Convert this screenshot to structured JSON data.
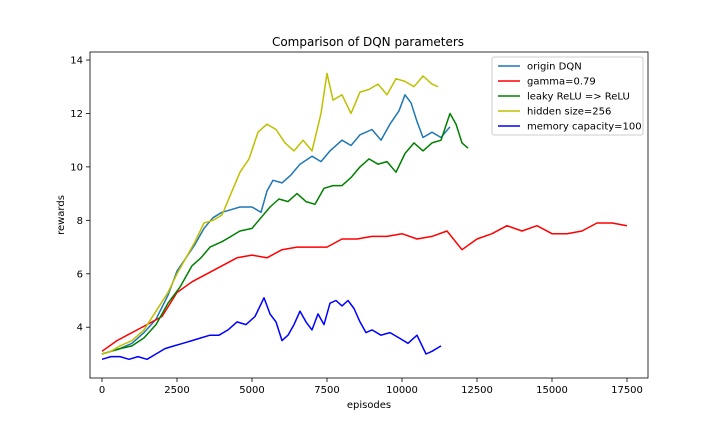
{
  "chart_data": {
    "type": "line",
    "title": "Comparison of DQN parameters",
    "xlabel": "episodes",
    "ylabel": "rewards",
    "xlim": [
      -400,
      18200
    ],
    "ylim": [
      2.1,
      14.3
    ],
    "xticks": [
      0,
      2500,
      5000,
      7500,
      10000,
      12500,
      15000,
      17500
    ],
    "yticks": [
      4,
      6,
      8,
      10,
      12,
      14
    ],
    "grid": false,
    "legend_position": "top-right",
    "series": [
      {
        "name": "origin DQN",
        "color": "#1f77b4",
        "x": [
          0,
          300,
          600,
          1000,
          1400,
          1800,
          2200,
          2500,
          2800,
          3100,
          3400,
          3700,
          4000,
          4300,
          4600,
          5000,
          5300,
          5500,
          5700,
          6000,
          6300,
          6600,
          7000,
          7300,
          7600,
          8000,
          8300,
          8600,
          9000,
          9300,
          9600,
          9900,
          10100,
          10300,
          10500,
          10700,
          11000,
          11300,
          11600
        ],
        "y": [
          3.0,
          3.1,
          3.2,
          3.4,
          3.8,
          4.3,
          5.2,
          6.1,
          6.6,
          7.1,
          7.7,
          8.1,
          8.3,
          8.4,
          8.5,
          8.5,
          8.3,
          9.1,
          9.5,
          9.4,
          9.7,
          10.1,
          10.4,
          10.2,
          10.6,
          11.0,
          10.8,
          11.2,
          11.4,
          11.0,
          11.6,
          12.1,
          12.7,
          12.4,
          11.7,
          11.1,
          11.3,
          11.1,
          11.5
        ]
      },
      {
        "name": "gamma=0.79",
        "color": "#ff0000",
        "x": [
          0,
          500,
          1000,
          1500,
          2000,
          2500,
          3000,
          3500,
          4000,
          4500,
          5000,
          5500,
          6000,
          6500,
          7000,
          7500,
          8000,
          8500,
          9000,
          9500,
          10000,
          10500,
          11000,
          11500,
          12000,
          12500,
          13000,
          13500,
          14000,
          14500,
          15000,
          15500,
          16000,
          16500,
          17000,
          17500
        ],
        "y": [
          3.1,
          3.5,
          3.8,
          4.1,
          4.4,
          5.3,
          5.7,
          6.0,
          6.3,
          6.6,
          6.7,
          6.6,
          6.9,
          7.0,
          7.0,
          7.0,
          7.3,
          7.3,
          7.4,
          7.4,
          7.5,
          7.3,
          7.4,
          7.6,
          6.9,
          7.3,
          7.5,
          7.8,
          7.6,
          7.8,
          7.5,
          7.5,
          7.6,
          7.9,
          7.9,
          7.8
        ]
      },
      {
        "name": "leaky ReLU => ReLU",
        "color": "#008000",
        "x": [
          0,
          300,
          600,
          1000,
          1400,
          1800,
          2200,
          2600,
          3000,
          3300,
          3600,
          4000,
          4300,
          4600,
          5000,
          5300,
          5600,
          5900,
          6200,
          6500,
          6800,
          7100,
          7400,
          7700,
          8000,
          8300,
          8600,
          8900,
          9200,
          9500,
          9800,
          10100,
          10400,
          10700,
          11000,
          11300,
          11600,
          11800,
          12000,
          12200
        ],
        "y": [
          3.0,
          3.1,
          3.2,
          3.3,
          3.6,
          4.1,
          4.9,
          5.5,
          6.3,
          6.6,
          7.0,
          7.2,
          7.4,
          7.6,
          7.7,
          8.1,
          8.5,
          8.8,
          8.7,
          9.0,
          8.7,
          8.6,
          9.2,
          9.3,
          9.3,
          9.6,
          10.0,
          10.3,
          10.1,
          10.2,
          9.8,
          10.5,
          10.9,
          10.6,
          10.9,
          11.0,
          12.0,
          11.6,
          10.9,
          10.7
        ]
      },
      {
        "name": "hidden size=256",
        "color": "#bfbf00",
        "x": [
          0,
          300,
          600,
          1000,
          1400,
          1800,
          2200,
          2500,
          2800,
          3100,
          3400,
          3700,
          4000,
          4300,
          4600,
          4900,
          5200,
          5500,
          5800,
          6100,
          6400,
          6700,
          7000,
          7300,
          7500,
          7700,
          8000,
          8300,
          8600,
          8900,
          9200,
          9500,
          9800,
          10100,
          10400,
          10700,
          11000,
          11200
        ],
        "y": [
          3.0,
          3.1,
          3.3,
          3.5,
          3.9,
          4.6,
          5.3,
          6.0,
          6.6,
          7.2,
          7.9,
          8.0,
          8.2,
          9.0,
          9.8,
          10.3,
          11.3,
          11.6,
          11.4,
          10.9,
          10.6,
          11.0,
          10.6,
          12.0,
          13.5,
          12.5,
          12.7,
          12.0,
          12.8,
          12.9,
          13.1,
          12.7,
          13.3,
          13.2,
          13.0,
          13.4,
          13.1,
          13.0
        ]
      },
      {
        "name": "memory capacity=100",
        "color": "#0000ff",
        "x": [
          0,
          300,
          600,
          900,
          1200,
          1500,
          1800,
          2100,
          2400,
          2700,
          3000,
          3300,
          3600,
          3900,
          4200,
          4500,
          4800,
          5100,
          5400,
          5600,
          5800,
          6000,
          6200,
          6400,
          6600,
          6800,
          7000,
          7200,
          7400,
          7600,
          7800,
          8000,
          8200,
          8400,
          8600,
          8800,
          9000,
          9300,
          9600,
          9900,
          10200,
          10500,
          10800,
          11000,
          11300
        ],
        "y": [
          2.8,
          2.9,
          2.9,
          2.8,
          2.9,
          2.8,
          3.0,
          3.2,
          3.3,
          3.4,
          3.5,
          3.6,
          3.7,
          3.7,
          3.9,
          4.2,
          4.1,
          4.4,
          5.1,
          4.5,
          4.2,
          3.5,
          3.7,
          4.1,
          4.6,
          4.2,
          3.9,
          4.5,
          4.1,
          4.9,
          5.0,
          4.8,
          5.0,
          4.7,
          4.2,
          3.8,
          3.9,
          3.7,
          3.8,
          3.6,
          3.4,
          3.7,
          3.0,
          3.1,
          3.3
        ]
      }
    ]
  }
}
